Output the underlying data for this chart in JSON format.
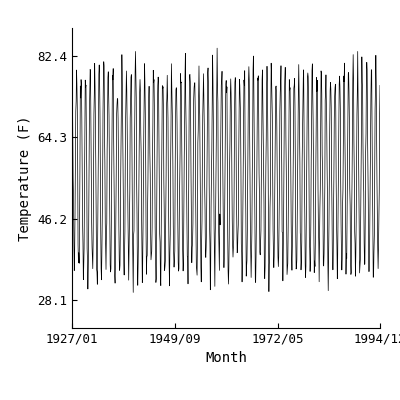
{
  "title": "",
  "xlabel": "Month",
  "ylabel": "Temperature (F)",
  "line_color": "#000000",
  "line_width": 0.5,
  "background_color": "#ffffff",
  "yticks": [
    28.1,
    46.2,
    64.3,
    82.4
  ],
  "xtick_labels": [
    "1927/01",
    "1949/09",
    "1972/05",
    "1994/12"
  ],
  "start_year": 1927,
  "start_month": 1,
  "end_year": 1994,
  "end_month": 12,
  "ymin": 22.0,
  "ymax": 88.5,
  "mean_temp": 56.5,
  "amplitude": 22.0,
  "noise_std": 2.5,
  "summer_peak_month": 7
}
